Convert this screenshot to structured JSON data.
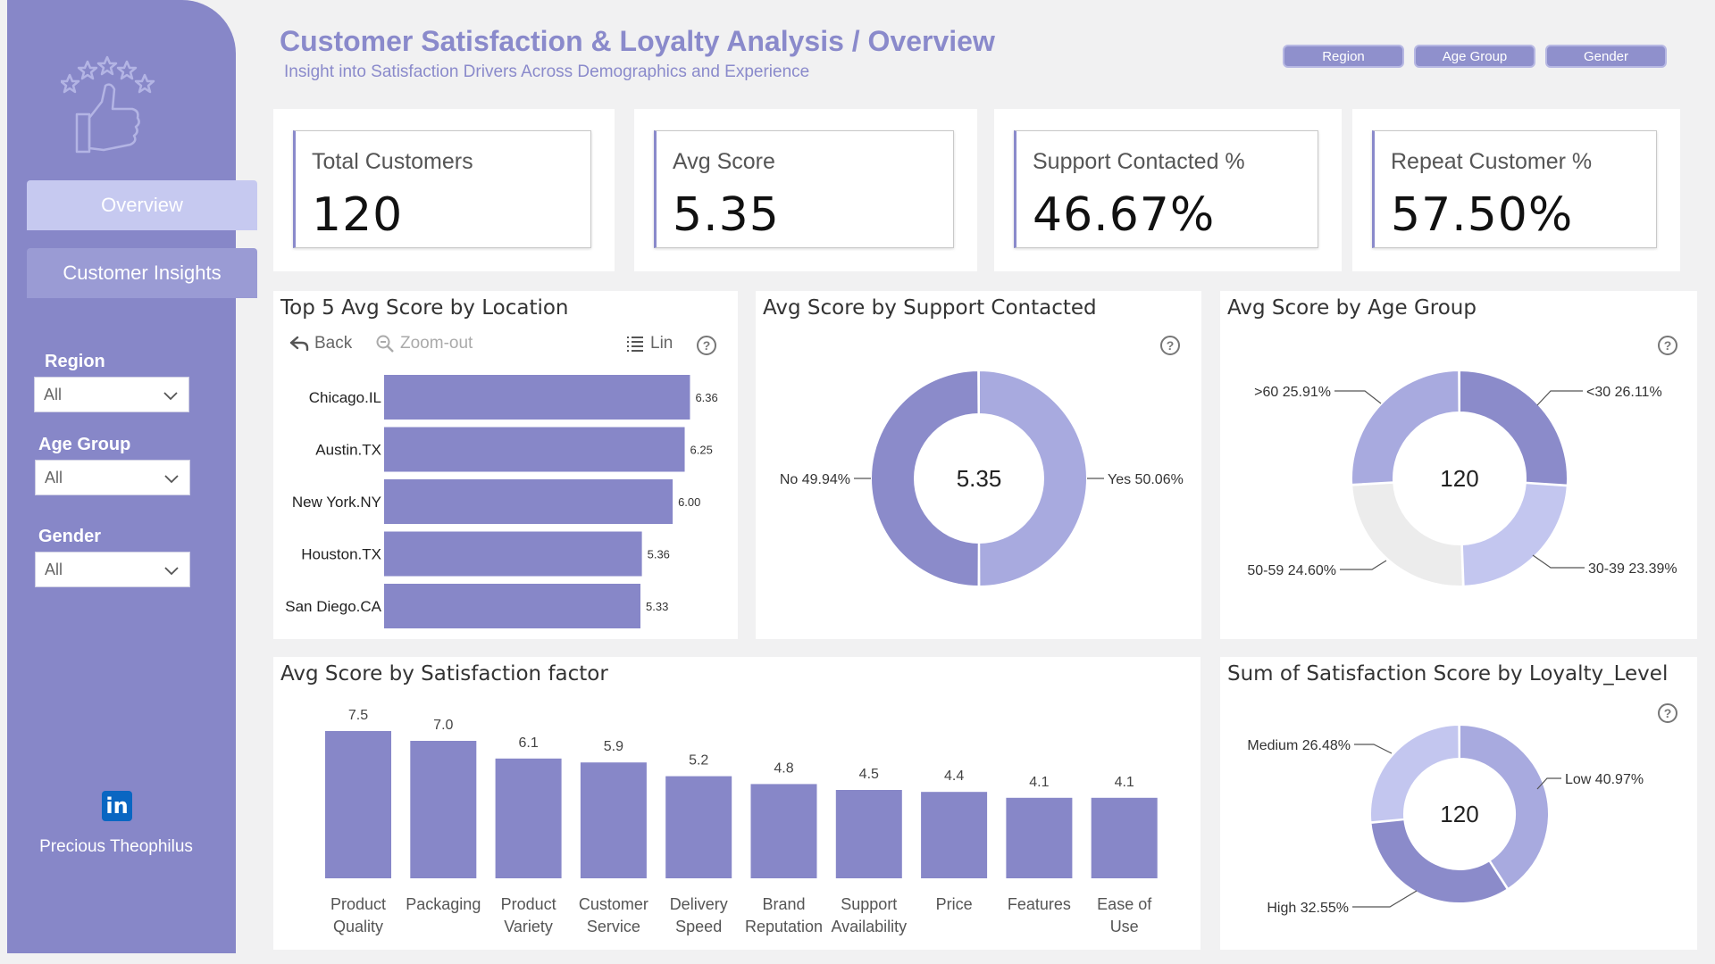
{
  "header": {
    "title": "Customer Satisfaction & Loyalty Analysis / Overview",
    "subtitle": "Insight into Satisfaction Drivers Across Demographics and Experience",
    "filter_pills": [
      "Region",
      "Age Group",
      "Gender"
    ]
  },
  "sidebar": {
    "nav": [
      {
        "label": "Overview",
        "active": true
      },
      {
        "label": "Customer Insights",
        "active": false
      }
    ],
    "filters": [
      {
        "label": "Region",
        "value": "All"
      },
      {
        "label": "Age Group",
        "value": "All"
      },
      {
        "label": "Gender",
        "value": "All"
      }
    ],
    "author": "Precious Theophilus",
    "linkedin_icon": "in"
  },
  "kpis": [
    {
      "label": "Total Customers",
      "value": "120"
    },
    {
      "label": "Avg Score",
      "value": "5.35"
    },
    {
      "label": "Support Contacted %",
      "value": "46.67%"
    },
    {
      "label": "Repeat Customer %",
      "value": "57.50%"
    }
  ],
  "colors": {
    "accent": "#8a8acb",
    "bar": "#8787c8",
    "donut_dark": "#8b8bca",
    "donut_light": "#a8aadf",
    "donut_pale": "#c3c6ef",
    "donut_grey": "#ececec"
  },
  "location_chart": {
    "title": "Top 5 Avg Score by Location",
    "toolbar": {
      "back": "Back",
      "zoom_out": "Zoom-out",
      "lin": "Lin",
      "help": "?"
    },
    "chart_data": {
      "type": "bar",
      "orientation": "horizontal",
      "categories": [
        "Chicago.IL",
        "Austin.TX",
        "New York.NY",
        "Houston.TX",
        "San Diego.CA"
      ],
      "values": [
        6.36,
        6.25,
        6.0,
        5.36,
        5.33
      ],
      "labels": [
        "6.36",
        "6.25",
        "6.00",
        "5.36",
        "5.33"
      ]
    }
  },
  "support_chart": {
    "title": "Avg Score by Support Contacted",
    "center": "5.35",
    "help": "?",
    "chart_data": {
      "type": "pie",
      "slices": [
        {
          "name": "Yes",
          "value": 50.06,
          "label": "Yes 50.06%"
        },
        {
          "name": "No",
          "value": 49.94,
          "label": "No 49.94%"
        }
      ]
    }
  },
  "age_chart": {
    "title": "Avg Score by Age Group",
    "center": "120",
    "help": "?",
    "chart_data": {
      "type": "pie",
      "slices": [
        {
          "name": "<30",
          "value": 26.11,
          "label": "<30 26.11%"
        },
        {
          "name": "30-39",
          "value": 23.39,
          "label": "30-39 23.39%"
        },
        {
          "name": "50-59",
          "value": 24.6,
          "label": "50-59 24.60%"
        },
        {
          "name": ">60",
          "value": 25.91,
          "label": ">60 25.91%"
        }
      ]
    }
  },
  "factor_chart": {
    "title": "Avg Score by Satisfaction factor",
    "chart_data": {
      "type": "bar",
      "categories": [
        [
          "Product",
          "Quality"
        ],
        [
          "Packaging"
        ],
        [
          "Product",
          "Variety"
        ],
        [
          "Customer",
          "Service"
        ],
        [
          "Delivery",
          "Speed"
        ],
        [
          "Brand",
          "Reputation"
        ],
        [
          "Support",
          "Availability"
        ],
        [
          "Price"
        ],
        [
          "Features"
        ],
        [
          "Ease of",
          "Use"
        ]
      ],
      "values": [
        7.5,
        7.0,
        6.1,
        5.9,
        5.2,
        4.8,
        4.5,
        4.4,
        4.1,
        4.1
      ],
      "labels": [
        "7.5",
        "7.0",
        "6.1",
        "5.9",
        "5.2",
        "4.8",
        "4.5",
        "4.4",
        "4.1",
        "4.1"
      ],
      "ylim": [
        0,
        8
      ]
    }
  },
  "loyalty_chart": {
    "title": "Sum of Satisfaction Score by Loyalty_Level",
    "center": "120",
    "help": "?",
    "chart_data": {
      "type": "pie",
      "slices": [
        {
          "name": "Low",
          "value": 40.97,
          "label": "Low 40.97%"
        },
        {
          "name": "High",
          "value": 32.55,
          "label": "High 32.55%"
        },
        {
          "name": "Medium",
          "value": 26.48,
          "label": "Medium 26.48%"
        }
      ]
    }
  }
}
